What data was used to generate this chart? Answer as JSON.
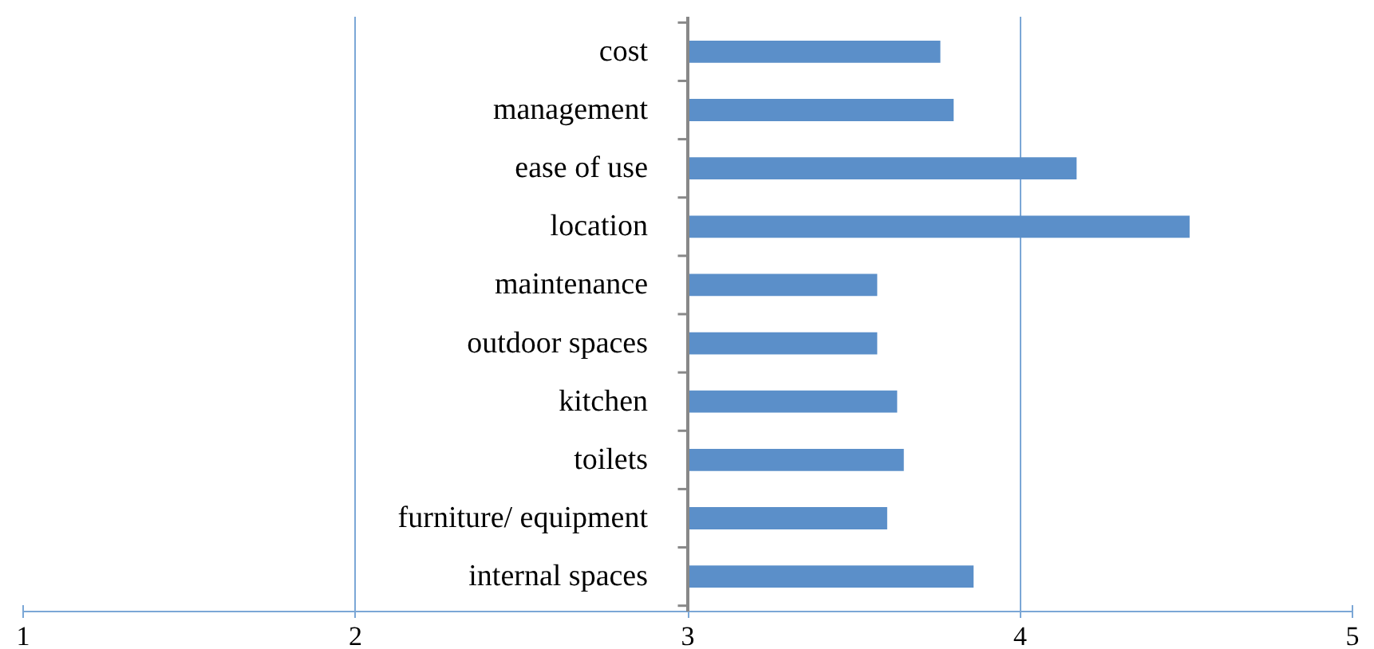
{
  "chart_data": {
    "type": "bar",
    "orientation": "horizontal",
    "categories": [
      "cost",
      "management",
      "ease of use",
      "location",
      "maintenance",
      "outdoor spaces",
      "kitchen",
      "toilets",
      "furniture/ equipment",
      "internal spaces"
    ],
    "base": [
      3,
      3,
      3,
      3,
      3,
      3,
      3,
      3,
      3,
      3
    ],
    "values": [
      0.76,
      0.8,
      1.17,
      1.51,
      0.57,
      0.57,
      0.63,
      0.65,
      0.6,
      0.86
    ],
    "color": "#5b8fc9",
    "xlim": [
      1,
      5
    ],
    "xticks": [
      1,
      2,
      3,
      4,
      5
    ],
    "grid": "x"
  }
}
